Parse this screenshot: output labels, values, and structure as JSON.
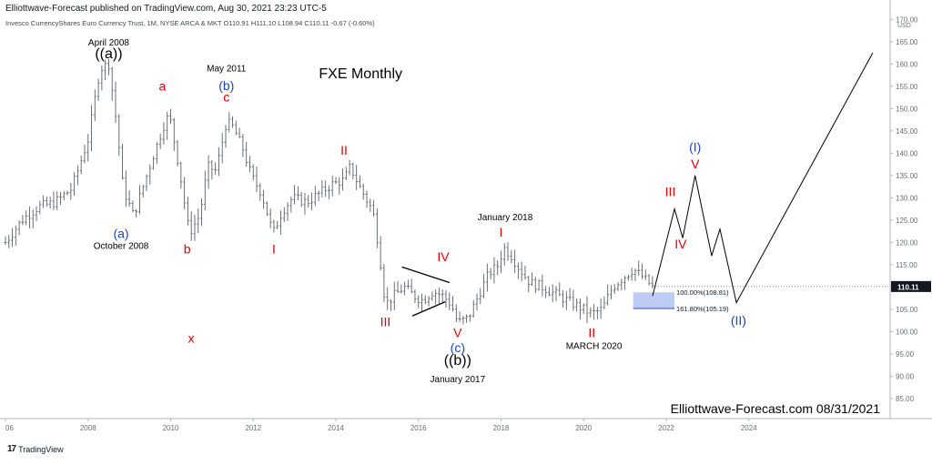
{
  "header": {
    "publish_line": "Elliottwave-Forecast published on TradingView.com, Aug 30, 2021 23:23 UTC-5",
    "symbol_line": "Invesco CurrencyShares Euro Currency Trust, 1M, NYSE ARCA & MKT  O110.91  H111.10  L108.94  C110.11  -0.67 (-0.60%)"
  },
  "footer": {
    "brand": "TradingView",
    "logo_mark": "17"
  },
  "watermark": "Elliottwave-Forecast.com 08/31/2021",
  "colors": {
    "up_down_bars": "#5d606b",
    "red_label": "#e00000",
    "blue_label": "#1848c8",
    "black_label": "#000000",
    "target_box": "#b3c3f2",
    "price_tag": "#131722",
    "axis_text": "#6a6d78"
  },
  "chart_data": {
    "type": "ohlc",
    "title": "FXE Monthly",
    "xlabel": "",
    "ylabel": "",
    "currency": "USD",
    "x_ticks": [
      "06",
      "2008",
      "2010",
      "2012",
      "2014",
      "2016",
      "2018",
      "2020",
      "2022",
      "2024"
    ],
    "x_tick_years": [
      2006,
      2008,
      2010,
      2012,
      2014,
      2016,
      2018,
      2020,
      2022,
      2024
    ],
    "y_ticks": [
      85.0,
      90.0,
      95.0,
      100.0,
      105.0,
      110.0,
      115.0,
      120.0,
      125.0,
      130.0,
      135.0,
      140.0,
      145.0,
      150.0,
      155.0,
      160.0,
      165.0,
      170.0
    ],
    "y_tick_labels": [
      "85.00",
      "90.00",
      "95.00",
      "100.00",
      "105.00",
      "110.00",
      "115.00",
      "120.00",
      "125.00",
      "130.00",
      "135.00",
      "140.00",
      "145.00",
      "150.00",
      "155.00",
      "160.00",
      "165.00",
      "170.00"
    ],
    "ylim": [
      80.5,
      171.5
    ],
    "xlim": [
      2006.0,
      2027.4
    ],
    "last_price": {
      "value": 110.11,
      "label": "110.11"
    },
    "price_anchors": [
      [
        2006.0,
        120.0
      ],
      [
        2006.4,
        125.0
      ],
      [
        2006.8,
        128.0
      ],
      [
        2007.2,
        129.0
      ],
      [
        2007.6,
        132.0
      ],
      [
        2008.0,
        143.0
      ],
      [
        2008.29,
        159.0
      ],
      [
        2008.5,
        160.0
      ],
      [
        2008.7,
        146.0
      ],
      [
        2008.85,
        132.0
      ],
      [
        2009.1,
        126.0
      ],
      [
        2009.35,
        133.0
      ],
      [
        2009.6,
        140.0
      ],
      [
        2009.9,
        148.0
      ],
      [
        2010.0,
        147.0
      ],
      [
        2010.2,
        137.0
      ],
      [
        2010.45,
        122.0
      ],
      [
        2010.7,
        126.0
      ],
      [
        2010.9,
        137.0
      ],
      [
        2011.1,
        136.0
      ],
      [
        2011.35,
        147.0
      ],
      [
        2011.5,
        146.0
      ],
      [
        2011.75,
        141.0
      ],
      [
        2011.95,
        135.0
      ],
      [
        2012.2,
        131.0
      ],
      [
        2012.48,
        122.0
      ],
      [
        2012.7,
        127.0
      ],
      [
        2012.95,
        130.0
      ],
      [
        2013.3,
        129.0
      ],
      [
        2013.6,
        131.0
      ],
      [
        2013.9,
        133.0
      ],
      [
        2014.2,
        134.0
      ],
      [
        2014.35,
        137.0
      ],
      [
        2014.6,
        132.0
      ],
      [
        2014.9,
        127.0
      ],
      [
        2015.05,
        118.0
      ],
      [
        2015.2,
        106.0
      ],
      [
        2015.4,
        108.0
      ],
      [
        2015.65,
        110.0
      ],
      [
        2015.9,
        108.0
      ],
      [
        2016.1,
        107.0
      ],
      [
        2016.35,
        109.0
      ],
      [
        2016.6,
        108.0
      ],
      [
        2016.8,
        106.0
      ],
      [
        2016.95,
        102.0
      ],
      [
        2017.2,
        103.0
      ],
      [
        2017.45,
        108.0
      ],
      [
        2017.7,
        113.0
      ],
      [
        2017.95,
        115.0
      ],
      [
        2018.05,
        119.0
      ],
      [
        2018.25,
        117.0
      ],
      [
        2018.45,
        114.0
      ],
      [
        2018.7,
        111.0
      ],
      [
        2019.0,
        110.0
      ],
      [
        2019.4,
        108.0
      ],
      [
        2019.8,
        106.0
      ],
      [
        2020.2,
        104.0
      ],
      [
        2020.45,
        105.0
      ],
      [
        2020.7,
        110.0
      ],
      [
        2020.95,
        112.0
      ],
      [
        2021.2,
        114.0
      ],
      [
        2021.4,
        112.5
      ],
      [
        2021.67,
        110.11
      ]
    ],
    "projection_path": [
      [
        2021.67,
        108.0
      ],
      [
        2022.2,
        127.5
      ],
      [
        2022.4,
        121.0
      ],
      [
        2022.7,
        135.0
      ],
      [
        2023.1,
        117.0
      ],
      [
        2023.3,
        123.0
      ],
      [
        2023.7,
        106.5
      ],
      [
        2027.0,
        162.5
      ]
    ],
    "triangle_lines": [
      [
        [
          2015.6,
          114.5
        ],
        [
          2016.75,
          111.0
        ]
      ],
      [
        [
          2015.85,
          103.5
        ],
        [
          2016.65,
          106.7
        ]
      ]
    ],
    "target_zone": {
      "x_start": 2021.2,
      "x_end": 2022.2,
      "low": 105.19,
      "high": 108.81
    },
    "fib_levels": [
      {
        "label": "100.00%(108.81)",
        "value": 108.81
      },
      {
        "label": "161.80%(105.19)",
        "value": 105.19
      }
    ],
    "annotations": [
      {
        "text": "April 2008",
        "x": 2008.5,
        "y": 164.2,
        "color": "black",
        "size": "small"
      },
      {
        "text": "((a))",
        "x": 2008.5,
        "y": 161.3,
        "color": "black",
        "size": "large"
      },
      {
        "text": "a",
        "x": 2009.8,
        "y": 154.1,
        "color": "red",
        "size": "medium"
      },
      {
        "text": "May 2011",
        "x": 2011.35,
        "y": 158.3,
        "color": "black",
        "size": "small"
      },
      {
        "text": "(b)",
        "x": 2011.35,
        "y": 154.2,
        "color": "blue",
        "size": "medium"
      },
      {
        "text": "c",
        "x": 2011.35,
        "y": 151.6,
        "color": "red",
        "size": "medium"
      },
      {
        "text": "FXE Monthly",
        "x": 2014.6,
        "y": 156.8,
        "color": "black",
        "size": "title"
      },
      {
        "text": "II",
        "x": 2014.2,
        "y": 139.7,
        "color": "red",
        "size": "medium"
      },
      {
        "text": "(a)",
        "x": 2008.8,
        "y": 121.0,
        "color": "blue",
        "size": "medium"
      },
      {
        "text": "October 2008",
        "x": 2008.8,
        "y": 118.6,
        "color": "black",
        "size": "small"
      },
      {
        "text": "b",
        "x": 2010.4,
        "y": 117.5,
        "color": "red",
        "size": "medium"
      },
      {
        "text": "I",
        "x": 2012.5,
        "y": 117.5,
        "color": "red",
        "size": "medium"
      },
      {
        "text": "x",
        "x": 2010.5,
        "y": 97.5,
        "color": "red",
        "size": "medium"
      },
      {
        "text": "January 2018",
        "x": 2018.1,
        "y": 125.0,
        "color": "black",
        "size": "small"
      },
      {
        "text": "I",
        "x": 2018.0,
        "y": 121.3,
        "color": "red",
        "size": "medium"
      },
      {
        "text": "IV",
        "x": 2016.6,
        "y": 115.8,
        "color": "red",
        "size": "medium"
      },
      {
        "text": "III",
        "x": 2015.2,
        "y": 101.2,
        "color": "red",
        "size": "medium"
      },
      {
        "text": "V",
        "x": 2016.95,
        "y": 98.8,
        "color": "red",
        "size": "medium"
      },
      {
        "text": "(c)",
        "x": 2016.95,
        "y": 95.4,
        "color": "blue",
        "size": "medium"
      },
      {
        "text": "((b))",
        "x": 2016.95,
        "y": 92.5,
        "color": "black",
        "size": "large"
      },
      {
        "text": "January 2017",
        "x": 2016.95,
        "y": 88.7,
        "color": "black",
        "size": "small"
      },
      {
        "text": "II",
        "x": 2020.2,
        "y": 98.8,
        "color": "red",
        "size": "medium"
      },
      {
        "text": "MARCH 2020",
        "x": 2020.25,
        "y": 96.1,
        "color": "black",
        "size": "small"
      },
      {
        "text": "III",
        "x": 2022.1,
        "y": 130.4,
        "color": "red",
        "size": "medium"
      },
      {
        "text": "IV",
        "x": 2022.35,
        "y": 118.7,
        "color": "red",
        "size": "medium"
      },
      {
        "text": "(I)",
        "x": 2022.7,
        "y": 140.4,
        "color": "blue",
        "size": "medium"
      },
      {
        "text": "V",
        "x": 2022.7,
        "y": 136.6,
        "color": "red",
        "size": "medium"
      },
      {
        "text": "(II)",
        "x": 2023.75,
        "y": 101.5,
        "color": "blue",
        "size": "medium"
      }
    ]
  }
}
